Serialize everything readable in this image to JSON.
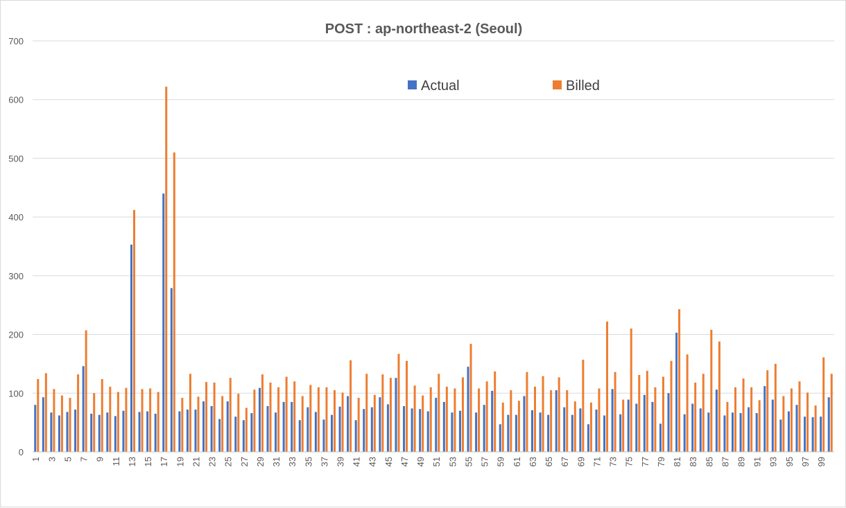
{
  "chart_data": {
    "type": "bar",
    "title": "POST : ap-northeast-2 (Seoul)",
    "xlabel": "",
    "ylabel": "",
    "ylim": [
      0,
      700
    ],
    "yticks": [
      0,
      100,
      200,
      300,
      400,
      500,
      600,
      700
    ],
    "grid": true,
    "legend_position": "top-center",
    "categories": [
      1,
      2,
      3,
      4,
      5,
      6,
      7,
      8,
      9,
      10,
      11,
      12,
      13,
      14,
      15,
      16,
      17,
      18,
      19,
      20,
      21,
      22,
      23,
      24,
      25,
      26,
      27,
      28,
      29,
      30,
      31,
      32,
      33,
      34,
      35,
      36,
      37,
      38,
      39,
      40,
      41,
      42,
      43,
      44,
      45,
      46,
      47,
      48,
      49,
      50,
      51,
      52,
      53,
      54,
      55,
      56,
      57,
      58,
      59,
      60,
      61,
      62,
      63,
      64,
      65,
      66,
      67,
      68,
      69,
      70,
      71,
      72,
      73,
      74,
      75,
      76,
      77,
      78,
      79,
      80,
      81,
      82,
      83,
      84,
      85,
      86,
      87,
      88,
      89,
      90,
      91,
      92,
      93,
      94,
      95,
      96,
      97,
      98,
      99,
      100
    ],
    "x_tick_labels": [
      "1",
      "3",
      "5",
      "7",
      "9",
      "11",
      "13",
      "15",
      "17",
      "19",
      "21",
      "23",
      "25",
      "27",
      "29",
      "31",
      "33",
      "35",
      "37",
      "39",
      "41",
      "43",
      "45",
      "47",
      "49",
      "51",
      "53",
      "55",
      "57",
      "59",
      "61",
      "63",
      "65",
      "67",
      "69",
      "71",
      "73",
      "75",
      "77",
      "79",
      "81",
      "83",
      "85",
      "87",
      "89",
      "91",
      "93",
      "95",
      "97",
      "99"
    ],
    "series": [
      {
        "name": "Actual",
        "color": "#4472c4",
        "values": [
          80,
          93,
          67,
          62,
          68,
          72,
          146,
          65,
          63,
          67,
          61,
          70,
          353,
          68,
          69,
          65,
          440,
          279,
          69,
          72,
          72,
          86,
          78,
          56,
          86,
          60,
          54,
          66,
          109,
          78,
          67,
          85,
          85,
          54,
          76,
          68,
          55,
          63,
          77,
          95,
          54,
          73,
          76,
          93,
          81,
          126,
          78,
          74,
          73,
          69,
          92,
          85,
          67,
          70,
          145,
          67,
          80,
          104,
          47,
          63,
          63,
          95,
          71,
          67,
          63,
          105,
          76,
          63,
          74,
          47,
          72,
          62,
          107,
          64,
          89,
          82,
          97,
          85,
          48,
          100,
          203,
          64,
          82,
          74,
          67,
          106,
          62,
          67,
          66,
          76,
          66,
          112,
          89,
          55,
          69,
          80,
          60,
          59,
          60,
          93
        ]
      },
      {
        "name": "Billed",
        "color": "#ed7d31",
        "values": [
          124,
          134,
          107,
          96,
          92,
          132,
          207,
          100,
          124,
          111,
          102,
          109,
          412,
          107,
          108,
          102,
          622,
          510,
          92,
          133,
          94,
          119,
          118,
          95,
          126,
          99,
          75,
          106,
          132,
          118,
          110,
          128,
          120,
          95,
          114,
          110,
          110,
          105,
          101,
          156,
          92,
          133,
          97,
          132,
          126,
          167,
          155,
          113,
          96,
          110,
          133,
          111,
          108,
          127,
          184,
          108,
          120,
          137,
          84,
          105,
          87,
          136,
          111,
          129,
          105,
          127,
          105,
          86,
          157,
          84,
          108,
          222,
          136,
          89,
          210,
          131,
          138,
          110,
          128,
          155,
          243,
          166,
          118,
          133,
          208,
          188,
          85,
          110,
          125,
          110,
          88,
          139,
          150,
          95,
          108,
          120,
          101,
          79,
          161,
          133
        ]
      }
    ]
  }
}
